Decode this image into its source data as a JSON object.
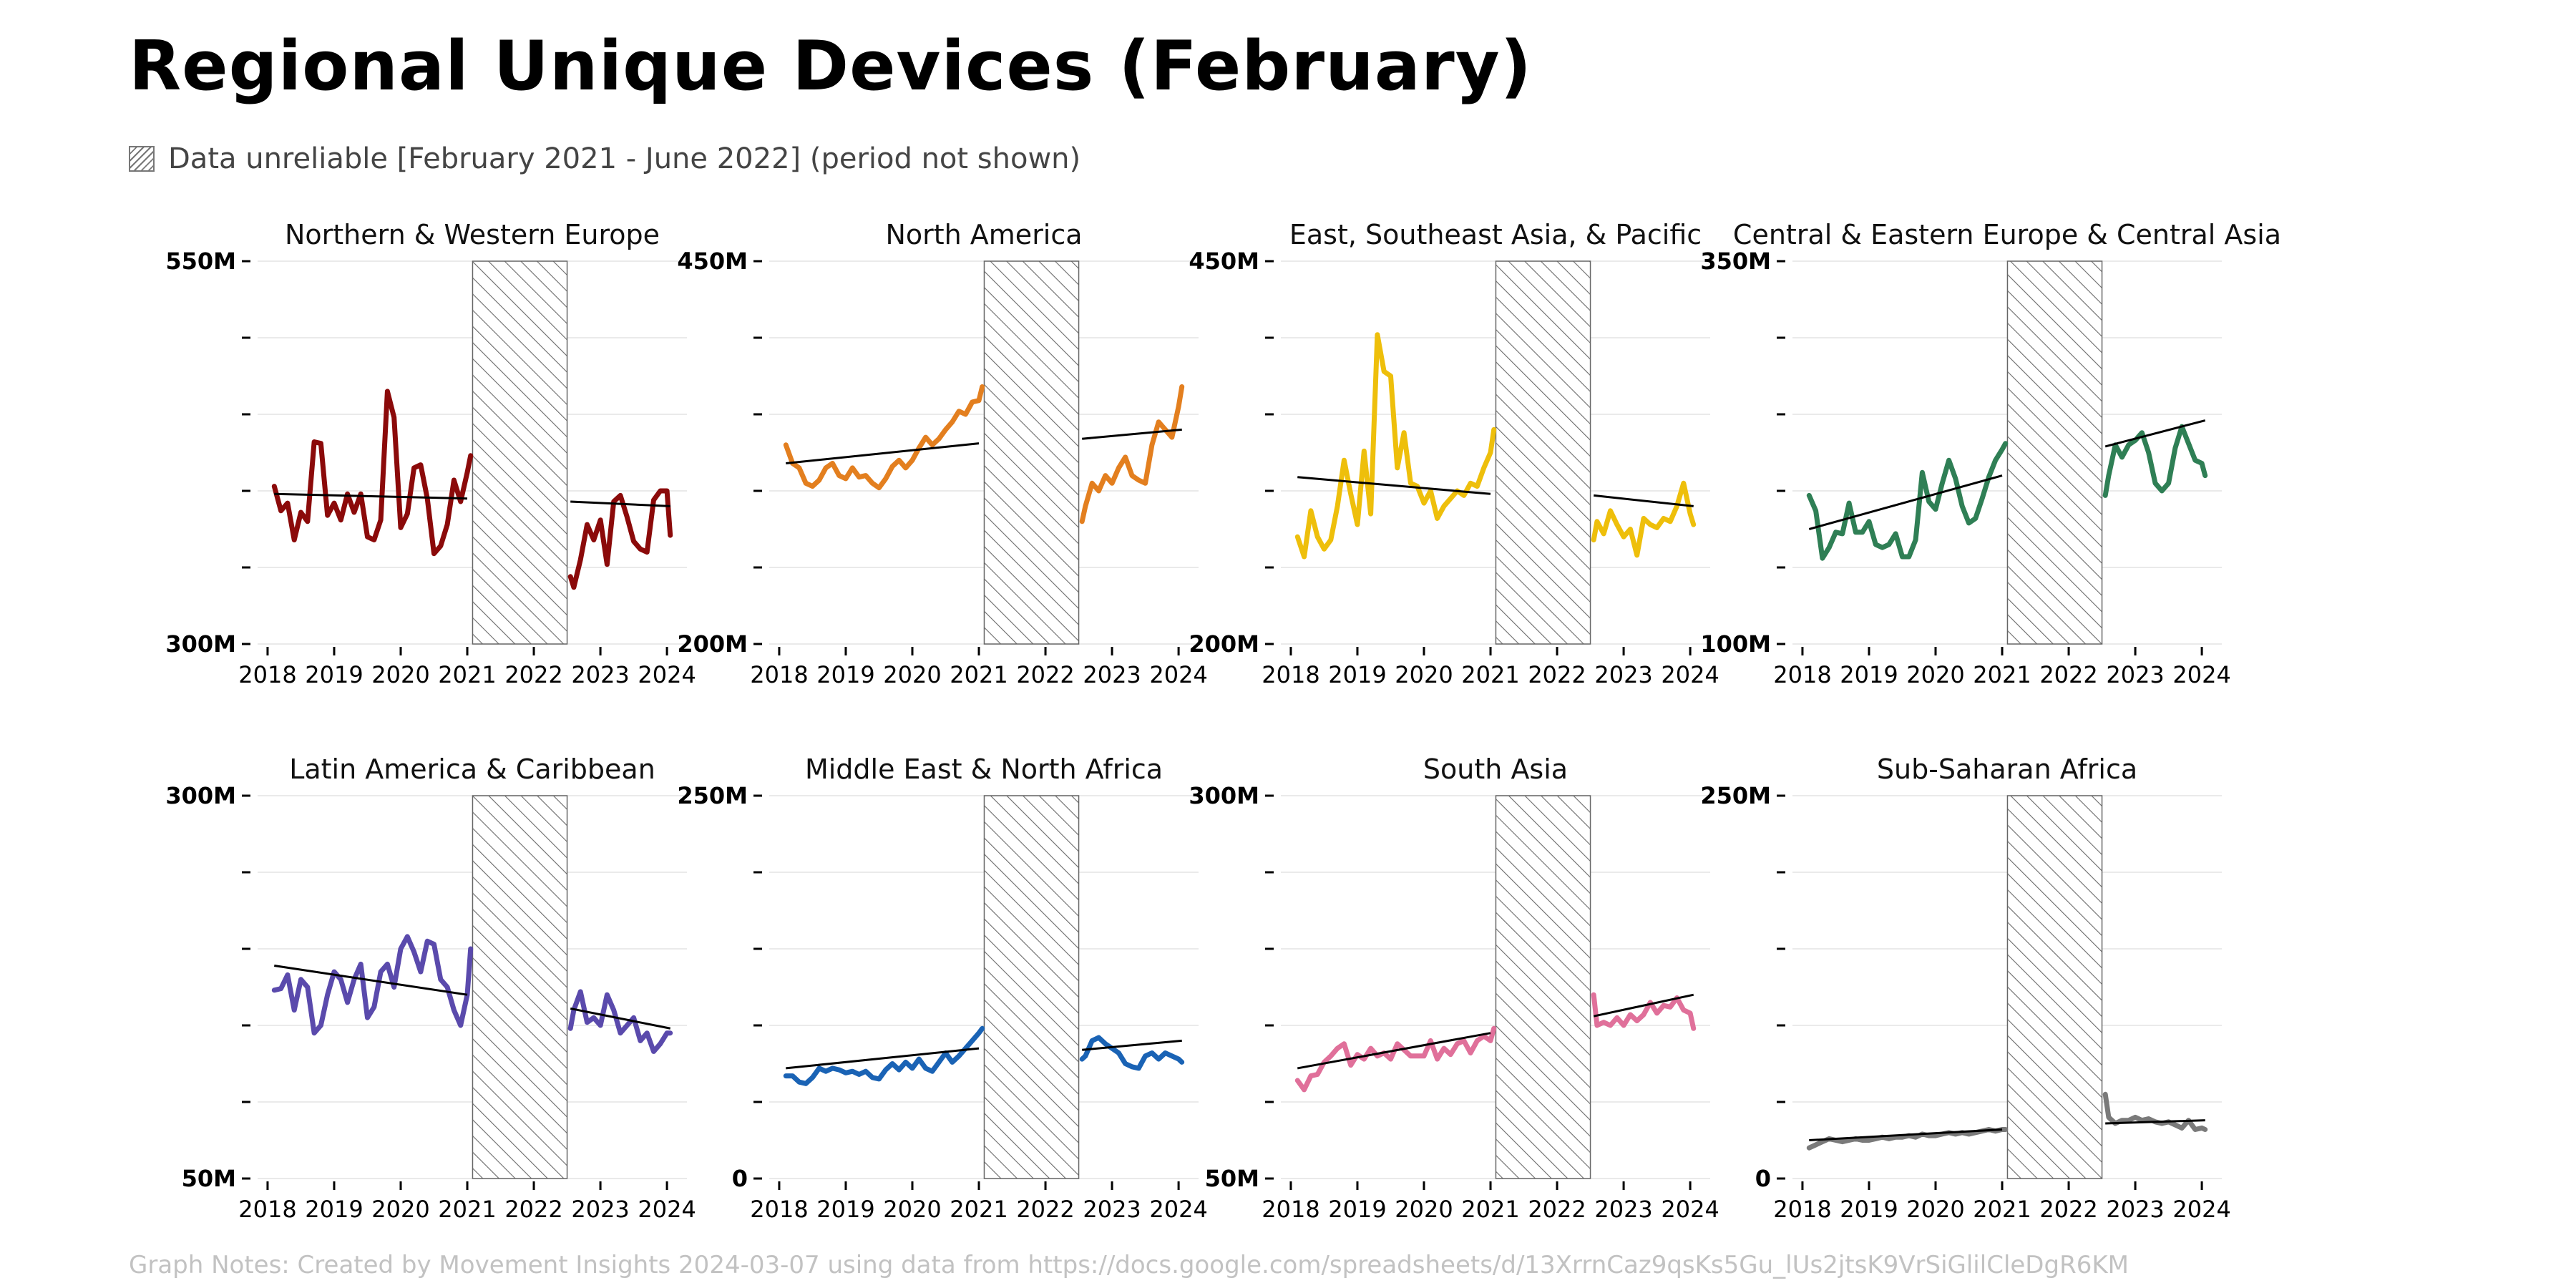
{
  "title": "Regional Unique Devices (February)",
  "legend_text": "Data unreliable [February 2021 - June 2022] (period not shown)",
  "notes": "Graph Notes: Created by Movement Insights 2024-03-07 using data from https://docs.google.com/spreadsheets/d/13XrrnCaz9qsKs5Gu_lUs2jtsK9VrSiGlilCleDgR6KM",
  "x_ticks": [
    "2018",
    "2019",
    "2020",
    "2021",
    "2022",
    "2023",
    "2024"
  ],
  "unreliable_period": {
    "start": 2021.08,
    "end": 2022.5
  },
  "chart_data": [
    {
      "type": "line",
      "title": "Northern & Western Europe",
      "color": "#8b0a0a",
      "ylim": [
        300,
        550
      ],
      "ytick_labels": {
        "min": "300M",
        "max": "550M"
      },
      "x": [
        2018.1,
        2018.2,
        2018.3,
        2018.4,
        2018.5,
        2018.6,
        2018.7,
        2018.8,
        2018.9,
        2019.0,
        2019.1,
        2019.2,
        2019.3,
        2019.4,
        2019.5,
        2019.6,
        2019.7,
        2019.8,
        2019.9,
        2020.0,
        2020.1,
        2020.2,
        2020.3,
        2020.4,
        2020.5,
        2020.6,
        2020.7,
        2020.8,
        2020.9,
        2021.0,
        2021.05,
        2022.55,
        2022.6,
        2022.7,
        2022.8,
        2022.9,
        2023.0,
        2023.1,
        2023.2,
        2023.3,
        2023.4,
        2023.5,
        2023.6,
        2023.7,
        2023.8,
        2023.9,
        2024.0,
        2024.05
      ],
      "y": [
        403,
        387,
        392,
        368,
        386,
        380,
        432,
        431,
        384,
        392,
        381,
        398,
        386,
        398,
        370,
        368,
        381,
        465,
        448,
        376,
        385,
        415,
        417,
        395,
        359,
        364,
        378,
        407,
        393,
        412,
        423,
        344,
        337,
        355,
        378,
        368,
        381,
        352,
        393,
        397,
        383,
        367,
        362,
        360,
        394,
        400,
        400,
        371
      ],
      "trend": [
        {
          "x": [
            2018.1,
            2021.0
          ],
          "y": [
            398,
            395
          ]
        },
        {
          "x": [
            2022.55,
            2024.05
          ],
          "y": [
            393,
            390
          ]
        }
      ]
    },
    {
      "type": "line",
      "title": "North America",
      "color": "#e37f1f",
      "ylim": [
        200,
        450
      ],
      "ytick_labels": {
        "min": "200M",
        "max": "450M"
      },
      "x": [
        2018.1,
        2018.2,
        2018.3,
        2018.4,
        2018.5,
        2018.6,
        2018.7,
        2018.8,
        2018.9,
        2019.0,
        2019.1,
        2019.2,
        2019.3,
        2019.4,
        2019.5,
        2019.6,
        2019.7,
        2019.8,
        2019.9,
        2020.0,
        2020.1,
        2020.2,
        2020.3,
        2020.4,
        2020.5,
        2020.6,
        2020.7,
        2020.8,
        2020.9,
        2021.0,
        2021.05,
        2022.55,
        2022.6,
        2022.7,
        2022.8,
        2022.9,
        2023.0,
        2023.1,
        2023.2,
        2023.3,
        2023.4,
        2023.5,
        2023.6,
        2023.7,
        2023.8,
        2023.9,
        2024.0,
        2024.05
      ],
      "y": [
        330,
        318,
        315,
        305,
        303,
        307,
        315,
        318,
        310,
        308,
        315,
        309,
        310,
        305,
        302,
        308,
        316,
        320,
        315,
        320,
        328,
        335,
        330,
        334,
        340,
        345,
        352,
        350,
        358,
        359,
        368,
        280,
        290,
        305,
        300,
        310,
        305,
        315,
        322,
        310,
        307,
        305,
        330,
        345,
        340,
        335,
        355,
        368
      ],
      "trend": [
        {
          "x": [
            2018.1,
            2021.0
          ],
          "y": [
            318,
            331
          ]
        },
        {
          "x": [
            2022.55,
            2024.05
          ],
          "y": [
            334,
            340
          ]
        }
      ]
    },
    {
      "type": "line",
      "title": "East, Southeast Asia, & Pacific",
      "color": "#eebf0b",
      "ylim": [
        200,
        450
      ],
      "ytick_labels": {
        "min": "200M",
        "max": "450M"
      },
      "x": [
        2018.1,
        2018.2,
        2018.3,
        2018.4,
        2018.5,
        2018.6,
        2018.7,
        2018.8,
        2018.9,
        2019.0,
        2019.1,
        2019.2,
        2019.3,
        2019.4,
        2019.5,
        2019.6,
        2019.7,
        2019.8,
        2019.9,
        2020.0,
        2020.1,
        2020.2,
        2020.3,
        2020.4,
        2020.5,
        2020.6,
        2020.7,
        2020.8,
        2020.9,
        2021.0,
        2021.05,
        2022.55,
        2022.6,
        2022.7,
        2022.8,
        2022.9,
        2023.0,
        2023.1,
        2023.2,
        2023.3,
        2023.4,
        2023.5,
        2023.6,
        2023.7,
        2023.8,
        2023.9,
        2024.0,
        2024.05
      ],
      "y": [
        270,
        257,
        287,
        270,
        262,
        268,
        290,
        320,
        298,
        278,
        326,
        285,
        402,
        378,
        375,
        315,
        338,
        305,
        303,
        292,
        300,
        282,
        290,
        295,
        300,
        297,
        305,
        303,
        315,
        325,
        340,
        268,
        280,
        272,
        287,
        278,
        270,
        275,
        258,
        282,
        278,
        276,
        282,
        280,
        290,
        305,
        285,
        278
      ],
      "trend": [
        {
          "x": [
            2018.1,
            2021.0
          ],
          "y": [
            309,
            298
          ]
        },
        {
          "x": [
            2022.55,
            2024.05
          ],
          "y": [
            297,
            290
          ]
        }
      ]
    },
    {
      "type": "line",
      "title": "Central & Eastern Europe & Central Asia",
      "color": "#2f7f55",
      "ylim": [
        100,
        350
      ],
      "ytick_labels": {
        "min": "100M",
        "max": "350M"
      },
      "x": [
        2018.1,
        2018.2,
        2018.3,
        2018.4,
        2018.5,
        2018.6,
        2018.7,
        2018.8,
        2018.9,
        2019.0,
        2019.1,
        2019.2,
        2019.3,
        2019.4,
        2019.5,
        2019.6,
        2019.7,
        2019.8,
        2019.9,
        2020.0,
        2020.1,
        2020.2,
        2020.3,
        2020.4,
        2020.5,
        2020.6,
        2020.7,
        2020.8,
        2020.9,
        2021.0,
        2021.05,
        2022.55,
        2022.6,
        2022.7,
        2022.8,
        2022.9,
        2023.0,
        2023.1,
        2023.2,
        2023.3,
        2023.4,
        2023.5,
        2023.6,
        2023.7,
        2023.8,
        2023.9,
        2024.0,
        2024.05
      ],
      "y": [
        197,
        187,
        156,
        163,
        173,
        172,
        192,
        173,
        173,
        180,
        165,
        163,
        165,
        172,
        157,
        157,
        168,
        212,
        193,
        188,
        205,
        220,
        208,
        190,
        179,
        182,
        195,
        209,
        220,
        227,
        231,
        197,
        210,
        230,
        222,
        230,
        233,
        238,
        225,
        205,
        200,
        205,
        228,
        242,
        231,
        220,
        218,
        210
      ],
      "trend": [
        {
          "x": [
            2018.1,
            2021.0
          ],
          "y": [
            175,
            210
          ]
        },
        {
          "x": [
            2022.55,
            2024.05
          ],
          "y": [
            229,
            246
          ]
        }
      ]
    },
    {
      "type": "line",
      "title": "Latin America & Caribbean",
      "color": "#5a4aac",
      "ylim": [
        50,
        300
      ],
      "ytick_labels": {
        "min": "50M",
        "max": "300M"
      },
      "x": [
        2018.1,
        2018.2,
        2018.3,
        2018.4,
        2018.5,
        2018.6,
        2018.7,
        2018.8,
        2018.9,
        2019.0,
        2019.1,
        2019.2,
        2019.3,
        2019.4,
        2019.5,
        2019.6,
        2019.7,
        2019.8,
        2019.9,
        2020.0,
        2020.1,
        2020.2,
        2020.3,
        2020.4,
        2020.5,
        2020.6,
        2020.7,
        2020.8,
        2020.9,
        2021.0,
        2021.05,
        2022.55,
        2022.6,
        2022.7,
        2022.8,
        2022.9,
        2023.0,
        2023.1,
        2023.2,
        2023.3,
        2023.4,
        2023.5,
        2023.6,
        2023.7,
        2023.8,
        2023.9,
        2024.0,
        2024.05
      ],
      "y": [
        173,
        174,
        183,
        160,
        180,
        175,
        145,
        150,
        170,
        185,
        180,
        165,
        180,
        190,
        155,
        162,
        185,
        190,
        175,
        200,
        208,
        198,
        185,
        205,
        203,
        180,
        175,
        160,
        150,
        170,
        200,
        148,
        160,
        172,
        152,
        155,
        150,
        170,
        160,
        145,
        150,
        155,
        140,
        145,
        133,
        138,
        145,
        145
      ],
      "trend": [
        {
          "x": [
            2018.1,
            2021.0
          ],
          "y": [
            189,
            170
          ]
        },
        {
          "x": [
            2022.55,
            2024.05
          ],
          "y": [
            161,
            148
          ]
        }
      ]
    },
    {
      "type": "line",
      "title": "Middle East & North Africa",
      "color": "#1a63b5",
      "ylim": [
        0,
        250
      ],
      "ytick_labels": {
        "min": "0",
        "max": "250M"
      },
      "x": [
        2018.1,
        2018.2,
        2018.3,
        2018.4,
        2018.5,
        2018.6,
        2018.7,
        2018.8,
        2018.9,
        2019.0,
        2019.1,
        2019.2,
        2019.3,
        2019.4,
        2019.5,
        2019.6,
        2019.7,
        2019.8,
        2019.9,
        2020.0,
        2020.1,
        2020.2,
        2020.3,
        2020.4,
        2020.5,
        2020.6,
        2020.7,
        2020.8,
        2020.9,
        2021.0,
        2021.05,
        2022.55,
        2022.6,
        2022.7,
        2022.8,
        2022.9,
        2023.0,
        2023.1,
        2023.2,
        2023.3,
        2023.4,
        2023.5,
        2023.6,
        2023.7,
        2023.8,
        2023.9,
        2024.0,
        2024.05
      ],
      "y": [
        67,
        67,
        63,
        62,
        66,
        72,
        70,
        72,
        71,
        69,
        70,
        68,
        70,
        66,
        65,
        71,
        75,
        71,
        76,
        72,
        78,
        72,
        70,
        76,
        82,
        76,
        80,
        85,
        90,
        95,
        98,
        78,
        80,
        90,
        92,
        88,
        85,
        82,
        75,
        73,
        72,
        80,
        82,
        78,
        82,
        80,
        78,
        76
      ],
      "trend": [
        {
          "x": [
            2018.1,
            2021.0
          ],
          "y": [
            72,
            85
          ]
        },
        {
          "x": [
            2022.55,
            2024.05
          ],
          "y": [
            84,
            90
          ]
        }
      ]
    },
    {
      "type": "line",
      "title": "South Asia",
      "color": "#e0709a",
      "ylim": [
        50,
        300
      ],
      "ytick_labels": {
        "min": "50M",
        "max": "300M"
      },
      "x": [
        2018.1,
        2018.2,
        2018.3,
        2018.4,
        2018.5,
        2018.6,
        2018.7,
        2018.8,
        2018.9,
        2019.0,
        2019.1,
        2019.2,
        2019.3,
        2019.4,
        2019.5,
        2019.6,
        2019.7,
        2019.8,
        2019.9,
        2020.0,
        2020.1,
        2020.2,
        2020.3,
        2020.4,
        2020.5,
        2020.6,
        2020.7,
        2020.8,
        2020.9,
        2021.0,
        2021.05,
        2022.55,
        2022.6,
        2022.7,
        2022.8,
        2022.9,
        2023.0,
        2023.1,
        2023.2,
        2023.3,
        2023.4,
        2023.5,
        2023.6,
        2023.7,
        2023.8,
        2023.9,
        2024.0,
        2024.05
      ],
      "y": [
        114,
        108,
        117,
        118,
        126,
        130,
        135,
        138,
        124,
        131,
        128,
        135,
        130,
        132,
        128,
        138,
        134,
        130,
        130,
        130,
        140,
        128,
        135,
        131,
        138,
        140,
        132,
        140,
        143,
        140,
        148,
        170,
        150,
        152,
        150,
        155,
        150,
        157,
        153,
        157,
        165,
        158,
        163,
        162,
        168,
        160,
        158,
        148
      ],
      "trend": [
        {
          "x": [
            2018.1,
            2021.0
          ],
          "y": [
            122,
            145
          ]
        },
        {
          "x": [
            2022.55,
            2024.05
          ],
          "y": [
            156,
            170
          ]
        }
      ]
    },
    {
      "type": "line",
      "title": "Sub-Saharan Africa",
      "color": "#7a7a7a",
      "ylim": [
        0,
        250
      ],
      "ytick_labels": {
        "min": "0",
        "max": "250M"
      },
      "x": [
        2018.1,
        2018.2,
        2018.3,
        2018.4,
        2018.5,
        2018.6,
        2018.7,
        2018.8,
        2018.9,
        2019.0,
        2019.1,
        2019.2,
        2019.3,
        2019.4,
        2019.5,
        2019.6,
        2019.7,
        2019.8,
        2019.9,
        2020.0,
        2020.1,
        2020.2,
        2020.3,
        2020.4,
        2020.5,
        2020.6,
        2020.7,
        2020.8,
        2020.9,
        2021.0,
        2021.05,
        2022.55,
        2022.6,
        2022.7,
        2022.8,
        2022.9,
        2023.0,
        2023.1,
        2023.2,
        2023.3,
        2023.4,
        2023.5,
        2023.6,
        2023.7,
        2023.8,
        2023.9,
        2024.0,
        2024.05
      ],
      "y": [
        20,
        22,
        24,
        26,
        25,
        24,
        25,
        26,
        25,
        25,
        26,
        27,
        26,
        27,
        27,
        28,
        27,
        29,
        28,
        28,
        29,
        30,
        29,
        30,
        29,
        30,
        31,
        32,
        31,
        32,
        32,
        55,
        40,
        36,
        38,
        38,
        40,
        38,
        39,
        37,
        36,
        37,
        35,
        33,
        38,
        32,
        33,
        32
      ],
      "trend": [
        {
          "x": [
            2018.1,
            2021.0
          ],
          "y": [
            25,
            32
          ]
        },
        {
          "x": [
            2022.55,
            2024.05
          ],
          "y": [
            36,
            38
          ]
        }
      ]
    }
  ]
}
